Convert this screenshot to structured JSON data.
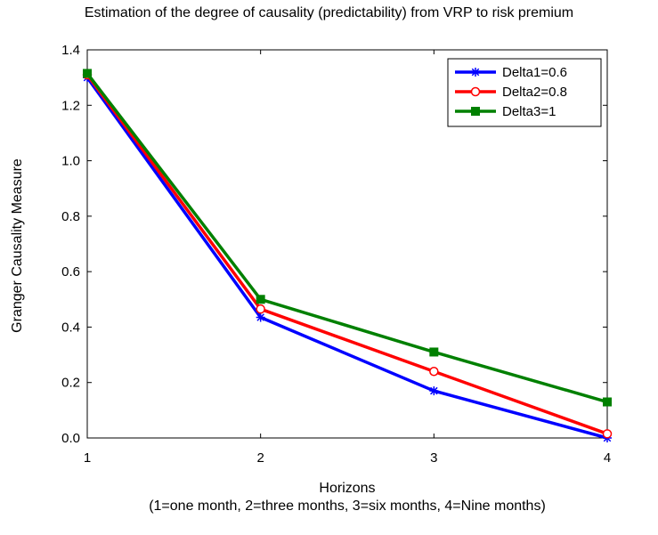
{
  "chart_data": {
    "type": "line",
    "title": "Estimation of the degree of causality (predictability) from VRP to risk premium",
    "xlabel": "Horizons",
    "xlabel_note": "(1=one month, 2=three months, 3=six months, 4=Nine months)",
    "ylabel": "Granger Causality Measure",
    "x": [
      1,
      2,
      3,
      4
    ],
    "xlim": [
      1,
      4
    ],
    "ylim": [
      0,
      1.4
    ],
    "xticks": [
      "1",
      "2",
      "3",
      "4"
    ],
    "yticks": [
      "0.0",
      "0.2",
      "0.4",
      "0.6",
      "0.8",
      "1.0",
      "1.2",
      "1.4"
    ],
    "grid": false,
    "legend_position": "top-right",
    "series": [
      {
        "name": "Delta1=0.6",
        "values": [
          1.3,
          0.435,
          0.17,
          0.0
        ],
        "color": "#0000ff",
        "marker": "star"
      },
      {
        "name": "Delta2=0.8",
        "values": [
          1.31,
          0.465,
          0.24,
          0.015
        ],
        "color": "#ff0000",
        "marker": "circle"
      },
      {
        "name": "Delta3=1",
        "values": [
          1.315,
          0.5,
          0.31,
          0.13
        ],
        "color": "#008000",
        "marker": "square"
      }
    ]
  }
}
